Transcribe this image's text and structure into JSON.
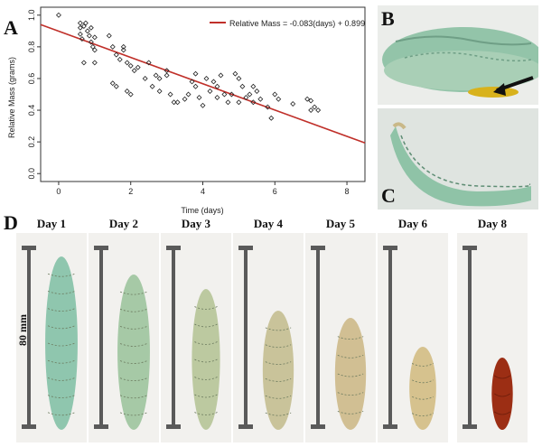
{
  "panels": {
    "a": "A",
    "b": "B",
    "c": "C",
    "d": "D"
  },
  "chart_data": {
    "type": "scatter",
    "xlabel": "Time (days)",
    "ylabel": "Relative Mass (grams)",
    "xlim": [
      -0.5,
      8.5
    ],
    "ylim": [
      -0.05,
      1.05
    ],
    "xticks": [
      0,
      2,
      4,
      6,
      8
    ],
    "yticks": [
      0.0,
      0.2,
      0.4,
      0.6,
      0.8,
      1.0
    ],
    "legend": {
      "label": "Relative Mass = -0.083(days) + 0.899",
      "placement": "top-right",
      "color": "#c0302a"
    },
    "fit": {
      "slope": -0.083,
      "intercept": 0.899
    },
    "points": [
      [
        0.0,
        1.0
      ],
      [
        0.6,
        0.95
      ],
      [
        0.6,
        0.92
      ],
      [
        0.6,
        0.88
      ],
      [
        0.65,
        0.85
      ],
      [
        0.7,
        0.93
      ],
      [
        0.75,
        0.95
      ],
      [
        0.8,
        0.9
      ],
      [
        0.85,
        0.87
      ],
      [
        0.9,
        0.92
      ],
      [
        0.9,
        0.83
      ],
      [
        0.95,
        0.8
      ],
      [
        1.0,
        0.78
      ],
      [
        1.0,
        0.86
      ],
      [
        0.7,
        0.7
      ],
      [
        1.0,
        0.7
      ],
      [
        1.4,
        0.87
      ],
      [
        1.5,
        0.8
      ],
      [
        1.5,
        0.57
      ],
      [
        1.6,
        0.55
      ],
      [
        1.6,
        0.75
      ],
      [
        1.7,
        0.72
      ],
      [
        1.8,
        0.78
      ],
      [
        1.8,
        0.8
      ],
      [
        1.9,
        0.7
      ],
      [
        1.9,
        0.52
      ],
      [
        2.0,
        0.68
      ],
      [
        2.0,
        0.5
      ],
      [
        2.1,
        0.65
      ],
      [
        2.2,
        0.67
      ],
      [
        2.4,
        0.6
      ],
      [
        2.5,
        0.7
      ],
      [
        2.6,
        0.55
      ],
      [
        2.7,
        0.62
      ],
      [
        2.8,
        0.6
      ],
      [
        2.8,
        0.52
      ],
      [
        3.0,
        0.65
      ],
      [
        3.0,
        0.62
      ],
      [
        3.1,
        0.5
      ],
      [
        3.2,
        0.45
      ],
      [
        3.3,
        0.45
      ],
      [
        3.5,
        0.47
      ],
      [
        3.6,
        0.5
      ],
      [
        3.7,
        0.58
      ],
      [
        3.8,
        0.55
      ],
      [
        3.8,
        0.63
      ],
      [
        3.9,
        0.48
      ],
      [
        4.0,
        0.43
      ],
      [
        4.1,
        0.6
      ],
      [
        4.2,
        0.52
      ],
      [
        4.3,
        0.58
      ],
      [
        4.4,
        0.55
      ],
      [
        4.4,
        0.48
      ],
      [
        4.5,
        0.62
      ],
      [
        4.6,
        0.5
      ],
      [
        4.7,
        0.45
      ],
      [
        4.8,
        0.5
      ],
      [
        4.9,
        0.63
      ],
      [
        5.0,
        0.6
      ],
      [
        5.0,
        0.45
      ],
      [
        5.1,
        0.55
      ],
      [
        5.2,
        0.48
      ],
      [
        5.3,
        0.5
      ],
      [
        5.4,
        0.55
      ],
      [
        5.4,
        0.45
      ],
      [
        5.5,
        0.52
      ],
      [
        5.6,
        0.47
      ],
      [
        5.8,
        0.42
      ],
      [
        5.9,
        0.35
      ],
      [
        6.0,
        0.5
      ],
      [
        6.1,
        0.47
      ],
      [
        6.5,
        0.44
      ],
      [
        6.9,
        0.47
      ],
      [
        7.0,
        0.4
      ],
      [
        7.0,
        0.46
      ],
      [
        7.1,
        0.42
      ],
      [
        7.2,
        0.4
      ]
    ]
  },
  "days": [
    {
      "label": "Day 1",
      "fill": "#8fc6ae",
      "len": 0.96,
      "width": 0.46
    },
    {
      "label": "Day 2",
      "fill": "#a6c9a6",
      "len": 0.86,
      "width": 0.46
    },
    {
      "label": "Day 3",
      "fill": "#bcc9a0",
      "len": 0.78,
      "width": 0.4
    },
    {
      "label": "Day 4",
      "fill": "#c9c39a",
      "len": 0.66,
      "width": 0.44
    },
    {
      "label": "Day 5",
      "fill": "#d1bf93",
      "len": 0.62,
      "width": 0.44
    },
    {
      "label": "Day 6",
      "fill": "#d6c28e",
      "len": 0.46,
      "width": 0.38
    },
    {
      "label": "Day 8",
      "fill": "#9c2e14",
      "len": 0.4,
      "width": 0.3
    }
  ],
  "ruler_label": "80 mm"
}
